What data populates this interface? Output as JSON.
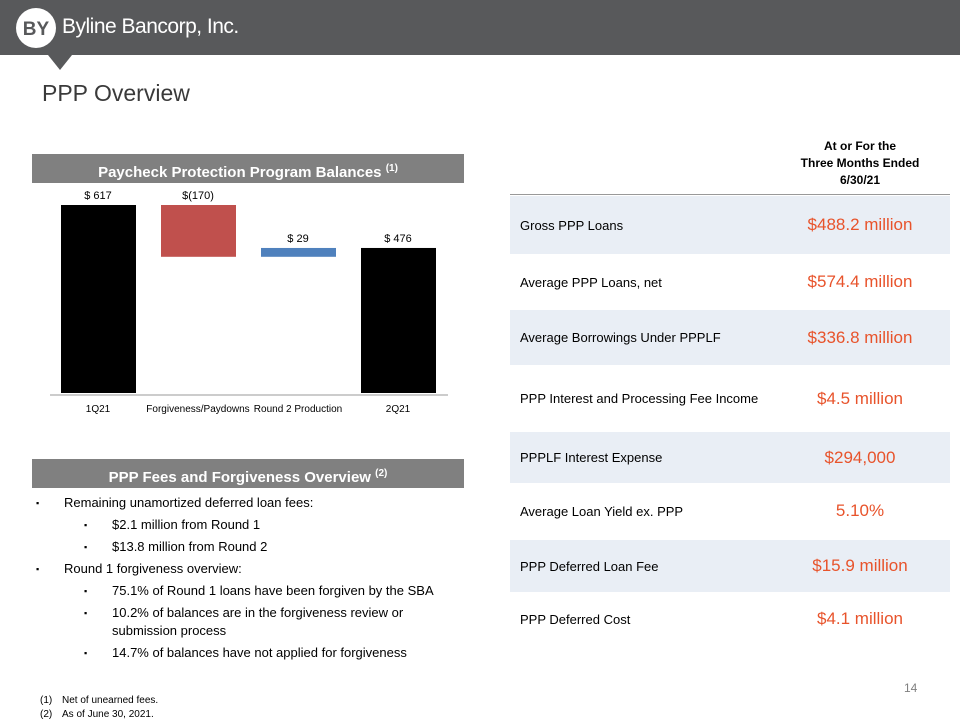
{
  "header": {
    "logo": "BY",
    "company": "Byline Bancorp, Inc."
  },
  "title": "PPP Overview",
  "chart_data": {
    "type": "waterfall",
    "title": "Paycheck Protection Program Balances",
    "title_note": "(1)",
    "categories": [
      "1Q21",
      "Forgiveness/Paydowns",
      "Round 2 Production",
      "2Q21"
    ],
    "values": [
      617,
      -170,
      29,
      476
    ],
    "value_labels": [
      "$ 617",
      "$(170)",
      "$ 29",
      "$ 476"
    ],
    "totals": [
      true,
      false,
      false,
      true
    ],
    "colors": [
      "#000000",
      "#c0504d",
      "#4f81bd",
      "#000000"
    ]
  },
  "fees": {
    "title": "PPP Fees and Forgiveness Overview",
    "title_note": "(2)",
    "bullets": [
      {
        "text": "Remaining unamortized deferred loan fees:",
        "level": 1
      },
      {
        "text": "$2.1 million from Round 1",
        "level": 2
      },
      {
        "text": "$13.8 million from Round 2",
        "level": 2
      },
      {
        "text": "Round 1 forgiveness overview:",
        "level": 1
      },
      {
        "text": "75.1% of Round 1 loans have been forgiven by the SBA",
        "level": 2
      },
      {
        "text": "10.2% of balances are in the forgiveness review or submission process",
        "level": 2
      },
      {
        "text": "14.7% of balances have not applied for forgiveness",
        "level": 2
      }
    ]
  },
  "table": {
    "header": [
      "At or For the",
      "Three Months Ended",
      "6/30/21"
    ],
    "rows": [
      [
        "Gross PPP Loans",
        "$488.2 million"
      ],
      [
        "Average PPP Loans, net",
        "$574.4 million"
      ],
      [
        "Average Borrowings Under PPPLF",
        "$336.8 million"
      ],
      [
        "PPP Interest and Processing Fee Income",
        "$4.5 million"
      ],
      [
        "PPPLF Interest Expense",
        "$294,000"
      ],
      [
        "Average Loan Yield ex. PPP",
        "5.10%"
      ],
      [
        "PPP Deferred Loan Fee",
        "$15.9 million"
      ],
      [
        "PPP Deferred Cost",
        "$4.1 million"
      ]
    ]
  },
  "footnotes": [
    {
      "marker": "(1)",
      "text": "Net of unearned fees."
    },
    {
      "marker": "(2)",
      "text": "As of June 30, 2021."
    }
  ],
  "page_number": "14"
}
